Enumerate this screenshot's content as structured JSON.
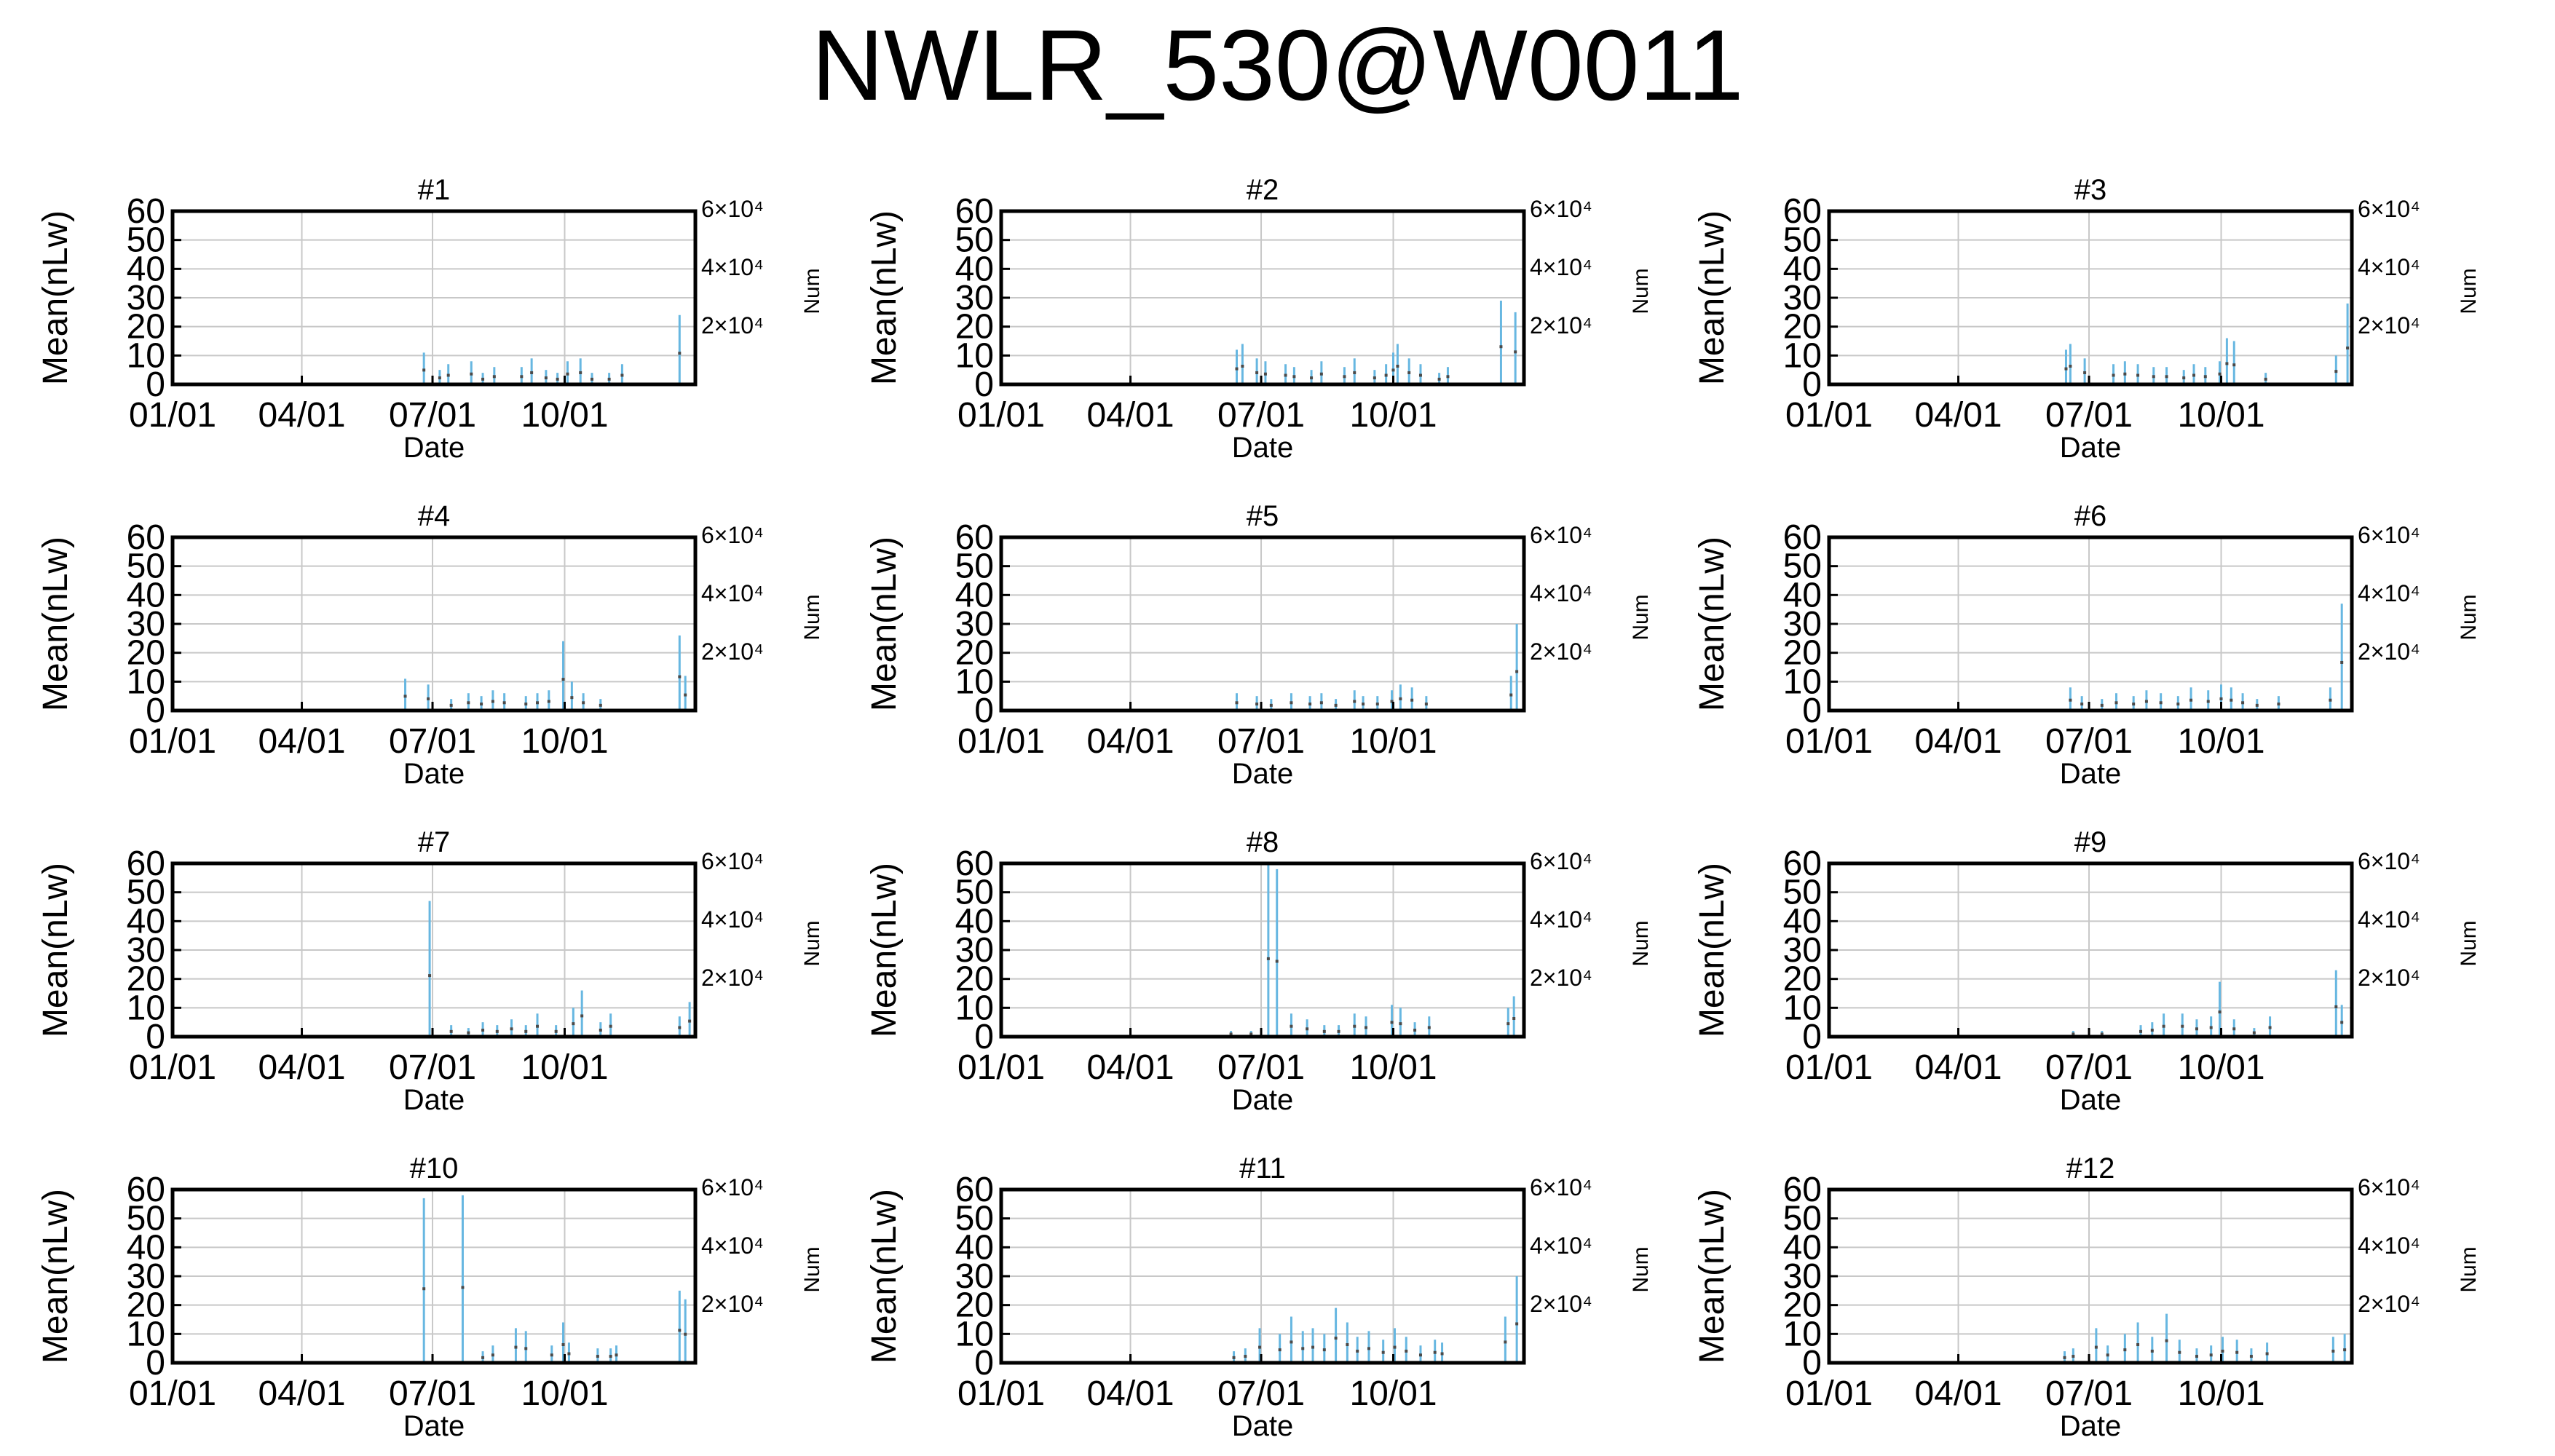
{
  "title": "NWLR_530@W0011",
  "colors": {
    "bar": "#67b7e1",
    "point": "#4a4a4a",
    "grid": "#c8c8c8",
    "frame": "#000000"
  },
  "chart_data": [
    {
      "type": "bar",
      "title": "#1",
      "xlabel": "Date",
      "ylabel": "Mean(nLw)",
      "y2label": "Num",
      "ylim": [
        0,
        60
      ],
      "yticks": [
        0,
        10,
        20,
        30,
        40,
        50,
        60
      ],
      "y2ticks": [
        "6×10⁴",
        "4×10⁴",
        "2×10⁴"
      ],
      "xlim": [
        "01/01",
        "12/31"
      ],
      "xticks": [
        "01/01",
        "04/01",
        "07/01",
        "10/01"
      ],
      "grid": true,
      "x": [
        "06/25",
        "07/06",
        "07/12",
        "07/28",
        "08/05",
        "08/13",
        "09/01",
        "09/08",
        "09/18",
        "09/26",
        "10/03",
        "10/12",
        "10/20",
        "11/01",
        "11/10",
        "12/20"
      ],
      "values": [
        11,
        5,
        7,
        8,
        4,
        6,
        6,
        9,
        5,
        4,
        8,
        9,
        4,
        4,
        7,
        24
      ]
    },
    {
      "type": "bar",
      "title": "#2",
      "xlabel": "Date",
      "ylabel": "Mean(nLw)",
      "y2label": "Num",
      "ylim": [
        0,
        60
      ],
      "yticks": [
        0,
        10,
        20,
        30,
        40,
        50,
        60
      ],
      "y2ticks": [
        "6×10⁴",
        "4×10⁴",
        "2×10⁴"
      ],
      "xlim": [
        "01/01",
        "12/31"
      ],
      "xticks": [
        "01/01",
        "04/01",
        "07/01",
        "10/01"
      ],
      "grid": true,
      "x": [
        "06/14",
        "06/18",
        "06/28",
        "07/04",
        "07/18",
        "07/24",
        "08/05",
        "08/12",
        "08/28",
        "09/04",
        "09/18",
        "09/26",
        "10/01",
        "10/04",
        "10/12",
        "10/20",
        "11/02",
        "11/08",
        "12/15",
        "12/25"
      ],
      "values": [
        12,
        14,
        9,
        8,
        7,
        6,
        5,
        8,
        6,
        9,
        5,
        7,
        11,
        14,
        9,
        7,
        4,
        6,
        29,
        25
      ]
    },
    {
      "type": "bar",
      "title": "#3",
      "xlabel": "Date",
      "ylabel": "Mean(nLw)",
      "y2label": "Num",
      "ylim": [
        0,
        60
      ],
      "yticks": [
        0,
        10,
        20,
        30,
        40,
        50,
        60
      ],
      "y2ticks": [
        "6×10⁴",
        "4×10⁴",
        "2×10⁴"
      ],
      "xlim": [
        "01/01",
        "12/31"
      ],
      "xticks": [
        "01/01",
        "04/01",
        "07/01",
        "10/01"
      ],
      "grid": true,
      "x": [
        "06/15",
        "06/18",
        "06/28",
        "07/18",
        "07/26",
        "08/04",
        "08/15",
        "08/24",
        "09/05",
        "09/12",
        "09/20",
        "09/30",
        "10/05",
        "10/10",
        "11/01",
        "12/20",
        "12/28"
      ],
      "values": [
        12,
        14,
        9,
        7,
        8,
        7,
        6,
        6,
        5,
        7,
        6,
        8,
        16,
        15,
        4,
        10,
        28
      ]
    },
    {
      "type": "bar",
      "title": "#4",
      "xlabel": "Date",
      "ylabel": "Mean(nLw)",
      "y2label": "Num",
      "ylim": [
        0,
        60
      ],
      "yticks": [
        0,
        10,
        20,
        30,
        40,
        50,
        60
      ],
      "y2ticks": [
        "6×10⁴",
        "4×10⁴",
        "2×10⁴"
      ],
      "xlim": [
        "01/01",
        "12/31"
      ],
      "xticks": [
        "01/01",
        "04/01",
        "07/01",
        "10/01"
      ],
      "grid": true,
      "x": [
        "06/12",
        "06/28",
        "07/14",
        "07/26",
        "08/04",
        "08/12",
        "08/20",
        "09/04",
        "09/12",
        "09/20",
        "09/30",
        "10/06",
        "10/14",
        "10/26",
        "12/20",
        "12/24"
      ],
      "values": [
        11,
        9,
        4,
        6,
        5,
        7,
        6,
        5,
        6,
        7,
        24,
        10,
        6,
        4,
        26,
        12
      ]
    },
    {
      "type": "bar",
      "title": "#5",
      "xlabel": "Date",
      "ylabel": "Mean(nLw)",
      "y2label": "Num",
      "ylim": [
        0,
        60
      ],
      "yticks": [
        0,
        10,
        20,
        30,
        40,
        50,
        60
      ],
      "y2ticks": [
        "6×10⁴",
        "4×10⁴",
        "2×10⁴"
      ],
      "xlim": [
        "01/01",
        "12/31"
      ],
      "xticks": [
        "01/01",
        "04/01",
        "07/01",
        "10/01"
      ],
      "grid": true,
      "x": [
        "06/14",
        "06/28",
        "07/08",
        "07/22",
        "08/04",
        "08/12",
        "08/22",
        "09/04",
        "09/10",
        "09/20",
        "09/30",
        "10/06",
        "10/14",
        "10/24",
        "12/22",
        "12/26"
      ],
      "values": [
        6,
        5,
        4,
        6,
        5,
        6,
        4,
        7,
        5,
        5,
        7,
        9,
        8,
        5,
        12,
        30
      ]
    },
    {
      "type": "bar",
      "title": "#6",
      "xlabel": "Date",
      "ylabel": "Mean(nLw)",
      "y2label": "Num",
      "ylim": [
        0,
        60
      ],
      "yticks": [
        0,
        10,
        20,
        30,
        40,
        50,
        60
      ],
      "y2ticks": [
        "6×10⁴",
        "4×10⁴",
        "2×10⁴"
      ],
      "xlim": [
        "01/01",
        "12/31"
      ],
      "xticks": [
        "01/01",
        "04/01",
        "07/01",
        "10/01"
      ],
      "grid": true,
      "x": [
        "06/18",
        "06/26",
        "07/10",
        "07/20",
        "08/01",
        "08/10",
        "08/20",
        "09/01",
        "09/10",
        "09/22",
        "10/01",
        "10/08",
        "10/16",
        "10/26",
        "11/10",
        "12/16",
        "12/24"
      ],
      "values": [
        8,
        5,
        4,
        6,
        5,
        7,
        6,
        5,
        8,
        7,
        9,
        8,
        6,
        4,
        5,
        8,
        37
      ]
    },
    {
      "type": "bar",
      "title": "#7",
      "xlabel": "Date",
      "ylabel": "Mean(nLw)",
      "y2label": "Num",
      "ylim": [
        0,
        60
      ],
      "yticks": [
        0,
        10,
        20,
        30,
        40,
        50,
        60
      ],
      "y2ticks": [
        "6×10⁴",
        "4×10⁴",
        "2×10⁴"
      ],
      "xlim": [
        "01/01",
        "12/31"
      ],
      "xticks": [
        "01/01",
        "04/01",
        "07/01",
        "10/01"
      ],
      "grid": true,
      "x": [
        "06/29",
        "07/14",
        "07/26",
        "08/05",
        "08/15",
        "08/25",
        "09/04",
        "09/12",
        "09/25",
        "10/07",
        "10/13",
        "10/26",
        "11/02",
        "12/20",
        "12/27"
      ],
      "values": [
        47,
        4,
        3,
        5,
        4,
        6,
        4,
        8,
        4,
        10,
        16,
        5,
        8,
        7,
        12
      ]
    },
    {
      "type": "bar",
      "title": "#8",
      "xlabel": "Date",
      "ylabel": "Mean(nLw)",
      "y2label": "Num",
      "ylim": [
        0,
        60
      ],
      "yticks": [
        0,
        10,
        20,
        30,
        40,
        50,
        60
      ],
      "y2ticks": [
        "6×10⁴",
        "4×10⁴",
        "2×10⁴"
      ],
      "xlim": [
        "01/01",
        "12/31"
      ],
      "xticks": [
        "01/01",
        "04/01",
        "07/01",
        "10/01"
      ],
      "grid": true,
      "x": [
        "06/10",
        "06/24",
        "07/06",
        "07/12",
        "07/22",
        "08/02",
        "08/14",
        "08/24",
        "09/04",
        "09/12",
        "09/30",
        "10/06",
        "10/16",
        "10/26",
        "12/20",
        "12/24"
      ],
      "values": [
        2,
        2,
        60,
        58,
        8,
        6,
        4,
        4,
        8,
        7,
        11,
        10,
        5,
        7,
        10,
        14
      ]
    },
    {
      "type": "bar",
      "title": "#9",
      "xlabel": "Date",
      "ylabel": "Mean(nLw)",
      "y2label": "Num",
      "ylim": [
        0,
        60
      ],
      "yticks": [
        0,
        10,
        20,
        30,
        40,
        50,
        60
      ],
      "y2ticks": [
        "6×10⁴",
        "4×10⁴",
        "2×10⁴"
      ],
      "xlim": [
        "01/01",
        "12/31"
      ],
      "xticks": [
        "01/01",
        "04/01",
        "07/01",
        "10/01"
      ],
      "grid": true,
      "x": [
        "06/20",
        "07/10",
        "08/06",
        "08/14",
        "08/22",
        "09/04",
        "09/14",
        "09/24",
        "09/30",
        "10/10",
        "10/24",
        "11/04",
        "12/20",
        "12/24"
      ],
      "values": [
        2,
        2,
        4,
        5,
        8,
        8,
        6,
        7,
        19,
        6,
        3,
        7,
        23,
        11
      ]
    },
    {
      "type": "bar",
      "title": "#10",
      "xlabel": "Date",
      "ylabel": "Mean(nLw)",
      "y2label": "Num",
      "ylim": [
        0,
        60
      ],
      "yticks": [
        0,
        10,
        20,
        30,
        40,
        50,
        60
      ],
      "y2ticks": [
        "6×10⁴",
        "4×10⁴",
        "2×10⁴"
      ],
      "xlim": [
        "01/01",
        "12/31"
      ],
      "xticks": [
        "01/01",
        "04/01",
        "07/01",
        "10/01"
      ],
      "grid": true,
      "x": [
        "06/25",
        "07/22",
        "08/05",
        "08/12",
        "08/28",
        "09/04",
        "09/22",
        "09/30",
        "10/04",
        "10/24",
        "11/02",
        "11/06",
        "12/20",
        "12/24"
      ],
      "values": [
        57,
        58,
        4,
        6,
        12,
        11,
        6,
        14,
        7,
        5,
        5,
        6,
        25,
        22
      ]
    },
    {
      "type": "bar",
      "title": "#11",
      "xlabel": "Date",
      "ylabel": "Mean(nLw)",
      "y2label": "Num",
      "ylim": [
        0,
        60
      ],
      "yticks": [
        0,
        10,
        20,
        30,
        40,
        50,
        60
      ],
      "y2ticks": [
        "6×10⁴",
        "4×10⁴",
        "2×10⁴"
      ],
      "xlim": [
        "01/01",
        "12/31"
      ],
      "xticks": [
        "01/01",
        "04/01",
        "07/01",
        "10/01"
      ],
      "grid": true,
      "x": [
        "06/12",
        "06/20",
        "06/30",
        "07/14",
        "07/22",
        "07/30",
        "08/06",
        "08/14",
        "08/22",
        "08/30",
        "09/06",
        "09/14",
        "09/24",
        "10/02",
        "10/10",
        "10/20",
        "10/30",
        "11/04",
        "12/18",
        "12/26"
      ],
      "values": [
        4,
        5,
        12,
        10,
        16,
        11,
        12,
        10,
        19,
        14,
        9,
        11,
        8,
        12,
        9,
        6,
        8,
        7,
        16,
        30
      ]
    },
    {
      "type": "bar",
      "title": "#12",
      "xlabel": "Date",
      "ylabel": "Mean(nLw)",
      "y2label": "Num",
      "ylim": [
        0,
        60
      ],
      "yticks": [
        0,
        10,
        20,
        30,
        40,
        50,
        60
      ],
      "y2ticks": [
        "6×10⁴",
        "4×10⁴",
        "2×10⁴"
      ],
      "xlim": [
        "01/01",
        "12/31"
      ],
      "xticks": [
        "01/01",
        "04/01",
        "07/01",
        "10/01"
      ],
      "grid": true,
      "x": [
        "06/14",
        "06/20",
        "07/06",
        "07/14",
        "07/26",
        "08/04",
        "08/14",
        "08/24",
        "09/02",
        "09/14",
        "09/24",
        "10/02",
        "10/12",
        "10/22",
        "11/02",
        "12/18",
        "12/26"
      ],
      "values": [
        4,
        5,
        12,
        6,
        10,
        14,
        9,
        17,
        8,
        5,
        6,
        9,
        8,
        5,
        7,
        9,
        10
      ]
    }
  ]
}
